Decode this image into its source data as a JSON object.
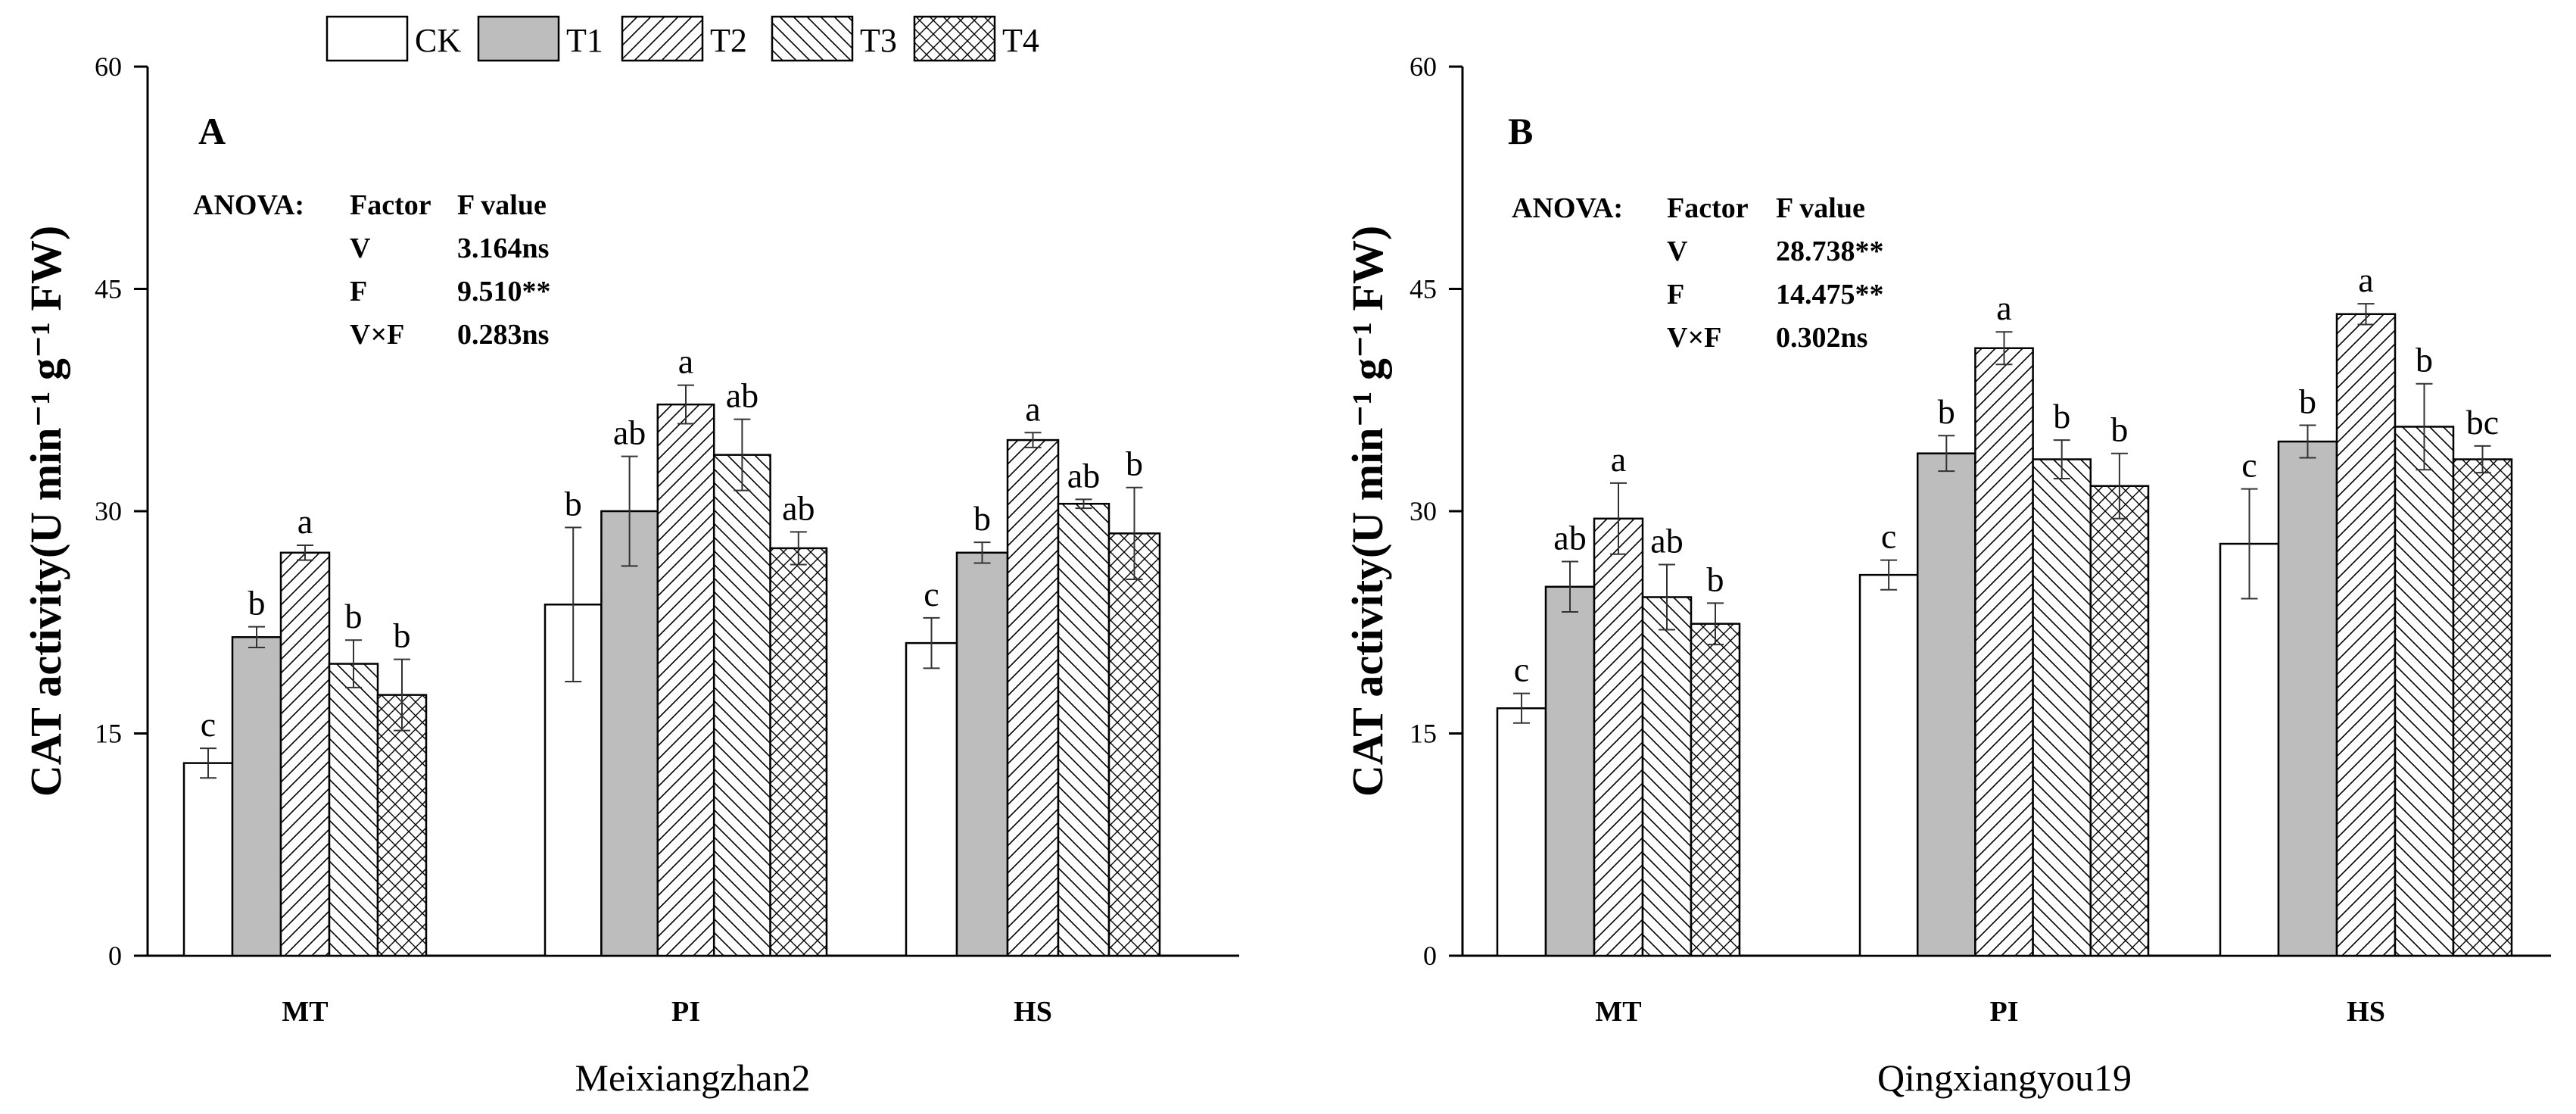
{
  "legend": {
    "entries": [
      {
        "name": "CK",
        "pattern": "empty"
      },
      {
        "name": "T1",
        "pattern": "gray"
      },
      {
        "name": "T2",
        "pattern": "diag-right"
      },
      {
        "name": "T3",
        "pattern": "diag-left"
      },
      {
        "name": "T4",
        "pattern": "cross"
      }
    ]
  },
  "colors": {
    "gray_fill": "#bdbdbd",
    "stroke": "#000000",
    "background": "#ffffff"
  },
  "chart_data": [
    {
      "type": "bar",
      "panel_label": "A",
      "title": "Meixiangzhan2",
      "ylabel": "CAT activity(U min⁻¹ g⁻¹ FW)",
      "ylim": [
        0,
        60
      ],
      "yticks": [
        "0",
        "15",
        "30",
        "45",
        "60"
      ],
      "categories": [
        "MT",
        "PI",
        "HS"
      ],
      "series": [
        {
          "name": "CK",
          "values": [
            13.0,
            23.7,
            21.1
          ],
          "errors": [
            1.0,
            5.2,
            1.7
          ],
          "letters": [
            "c",
            "b",
            "c"
          ]
        },
        {
          "name": "T1",
          "values": [
            21.5,
            30.0,
            27.2
          ],
          "errors": [
            0.7,
            3.7,
            0.7
          ],
          "letters": [
            "b",
            "ab",
            "b"
          ]
        },
        {
          "name": "T2",
          "values": [
            27.2,
            37.2,
            34.8
          ],
          "errors": [
            0.5,
            1.3,
            0.5
          ],
          "letters": [
            "a",
            "a",
            "a"
          ]
        },
        {
          "name": "T3",
          "values": [
            19.7,
            33.8,
            30.5
          ],
          "errors": [
            1.6,
            2.4,
            0.3
          ],
          "letters": [
            "b",
            "ab",
            "ab"
          ]
        },
        {
          "name": "T4",
          "values": [
            17.6,
            27.5,
            28.5
          ],
          "errors": [
            2.4,
            1.1,
            3.1
          ],
          "letters": [
            "b",
            "ab",
            "b"
          ]
        }
      ],
      "anova": {
        "title": "ANOVA:",
        "header": [
          "Factor",
          "F value"
        ],
        "rows": [
          {
            "factor": "V",
            "value": "3.164ns"
          },
          {
            "factor": "F",
            "value": "9.510**"
          },
          {
            "factor": "V×F",
            "value": "0.283ns"
          }
        ]
      }
    },
    {
      "type": "bar",
      "panel_label": "B",
      "title": "Qingxiangyou19",
      "ylabel": "CAT activity(U min⁻¹ g⁻¹ FW)",
      "ylim": [
        0,
        60
      ],
      "yticks": [
        "0",
        "15",
        "30",
        "45",
        "60"
      ],
      "categories": [
        "MT",
        "PI",
        "HS"
      ],
      "series": [
        {
          "name": "CK",
          "values": [
            16.7,
            25.7,
            27.8
          ],
          "errors": [
            1.0,
            1.0,
            3.7
          ],
          "letters": [
            "c",
            "c",
            "c"
          ]
        },
        {
          "name": "T1",
          "values": [
            24.9,
            33.9,
            34.7
          ],
          "errors": [
            1.7,
            1.2,
            1.1
          ],
          "letters": [
            "ab",
            "b",
            "b"
          ]
        },
        {
          "name": "T2",
          "values": [
            29.5,
            41.0,
            43.3
          ],
          "errors": [
            2.4,
            1.1,
            0.7
          ],
          "letters": [
            "a",
            "a",
            "a"
          ]
        },
        {
          "name": "T3",
          "values": [
            24.2,
            33.5,
            35.7
          ],
          "errors": [
            2.2,
            1.3,
            2.9
          ],
          "letters": [
            "ab",
            "b",
            "b"
          ]
        },
        {
          "name": "T4",
          "values": [
            22.4,
            31.7,
            33.5
          ],
          "errors": [
            1.4,
            2.2,
            0.9
          ],
          "letters": [
            "b",
            "b",
            "bc"
          ]
        }
      ],
      "anova": {
        "title": "ANOVA:",
        "header": [
          "Factor",
          "F value"
        ],
        "rows": [
          {
            "factor": "V",
            "value": "28.738**"
          },
          {
            "factor": "F",
            "value": "14.475**"
          },
          {
            "factor": "V×F",
            "value": "0.302ns"
          }
        ]
      }
    }
  ]
}
